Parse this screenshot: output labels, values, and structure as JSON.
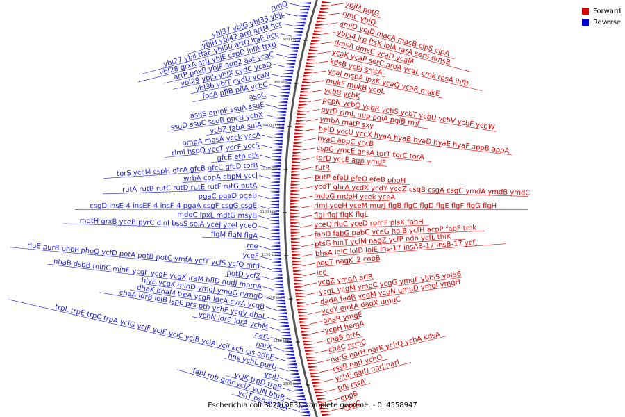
{
  "caption": "Escherichia coli BL21(DE3), complete genome. - 0..4558947",
  "legend": [
    {
      "label": "Forward",
      "color": "#dd0000"
    },
    {
      "label": "Reverse",
      "color": "#0000dd"
    }
  ],
  "colors": {
    "forward": "#dd0000",
    "reverse": "#1a1add",
    "backbone": "#555555"
  },
  "backbone_ticks": [
    "900 kbp",
    "950 kbp",
    "1000 kbp",
    "1050 kbp",
    "1100 kbp",
    "1150 kbp",
    "1200 kbp",
    "1250 kbp",
    "1300 kbp"
  ],
  "forward_rows": [
    "ybjM potG",
    "rlmC ybjQ",
    "amiD ybjD macA macB clpS clpA",
    "ybl54 lrp ftsK lolA rarA serS dmsB",
    "dmsA dmsC ycaD ycaM",
    "ycaK ycaP serC aroA ycaL cmk rpsA ihfB",
    "kdsB ycbJ smtA",
    "ycaI msbA lpxK ycaQ ycaR mukE",
    "mukF mukB ycbL",
    "ycbB ycbK",
    "pepN ycbQ ycbR ycbS ycbT ycbU ycbV ycbF ycbW",
    "pyrD rlmL uup pqiA pqiB rmf",
    "ymbA matP sxy",
    "helD yccU yccX hyaA hyaB hyaD hyaE hyaF appB appA",
    "hyaC appC yccB",
    "cspG ymcE gnsA torT torC torA",
    "torD yccE agp ymdF",
    "rutR",
    "putP efeU efeO efeB phoH",
    "ycdT ghrA ycdX ycdY ycdZ csgB csgA csgC ymdA ymdB ymdC",
    "mdoG mdoH ycek yceA",
    "rimJ yceH yceM murJ flgB flgC flgD flgE flgF flgG flgH",
    "flgI flgJ flgK flgL",
    "yceQ rluC yceD rpmF plsX fabH",
    "fabD fabG pabC yceG holB ycfH acpP fabF tmk",
    "ptsG hinT ycfM nagZ ycfP ndh ycfL thiK",
    "bhsA lolC lolD lolE ins-17 insAB-17 insB-17 ycfJ",
    "pepT nagK_2 cobB",
    "icd",
    "ycgZ ymgA ariR",
    "ycgL ycgM ymgC ycgG ymgF ybl55 ybl56",
    "dadA fadR ycgM ycgN umuD ymgI ymgH",
    "ycgY emtA dadX umuC",
    "dhaR ymgE",
    "ycbH hemA",
    "chaB prfA",
    "chaC prmC",
    "narG narH narK ychQ ychA kdsA",
    "rssB narI ychO",
    "ychE galU narJ narI",
    "tdk rssA",
    "oppB",
    "oppC"
  ],
  "reverse_rows": [
    "rimO",
    "ybl37 ybjG ybl33 ybjL",
    "ybjH ybl42 artI artM hcr",
    "ybl27 ybjl tfaE ybl50 artQ ltaE hcp",
    "ybl28 grxA artJ ybjE cspD infA trxB",
    "artP poxB ybjP aqp2 aat ycaC",
    "ybl29 ybjS ybjX cydC ycaO",
    "ybl36 ybjT cydD ycaN",
    "focA pflB pflA ycbC",
    "aspC",
    "asnS ompF ssuA ssuE",
    "ssuD ssuC ssuB pncB ycbX",
    "ycbZ fabA sulA",
    "ompA mgsA ycck yccA",
    "rlmI hspQ yccT yccF yccS",
    "gfcE etp etk",
    "torS yccM cspH gfcA gfcB gfcC gfcD torR",
    "wrbA cbpA cbpM yccJ",
    "rutA rutB rutC rutD rutE rutF rutG putA",
    "pgaC pgaD pgaB",
    "csgD insE-4 insEF-4 insF-4 pgaA csgF csgG csgE",
    "mdoC lpxL mdtG msyB",
    "mdtH grxB yceB pyrC dinI bssS solA yceJ yceI yceO",
    "flgM flgN flgA",
    "rne",
    "yceF",
    "rluE purB phoP phoQ ycfD potA potB potC ymfA ycfT ycfS ycfQ mfd",
    "potD ycfZ",
    "nhaB dsbB minC minE ycgF ycgE ycgX iraM hflD nudJ mnmA",
    "hlyE ycgK minD ymgJ ymgG rymgD",
    "dhaK dhaM treA ycgR ldcA cvrA ycgB",
    "chaA ldrB lolB ispE prs pth ychF ycgV dhaL",
    "ychN ldrC ldrA ychM",
    "narL",
    "narX",
    "trpL trpE trpC trpA ycjG ycjF yciE yciC yciB yciA yciI kch cls adhE",
    "hns ychL purU",
    "yciU",
    "ycjK trpD trpB",
    "fabI rnb gmr yciZ yciN btuR",
    "yciT osmB ribA"
  ]
}
